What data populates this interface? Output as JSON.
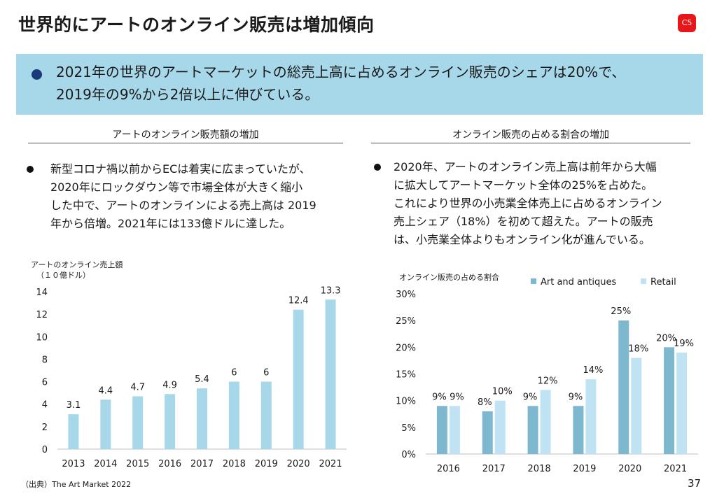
{
  "title": "世界的にアートのオンライン販売は増加傾向",
  "badge": "C5",
  "banner": {
    "line1": "2021年の世界のアートマーケットの総売上高に占めるオンライン販売のシェアは20%で、",
    "line2": "2019年の9%から2倍以上に伸びている。"
  },
  "left": {
    "heading": "アートのオンライン販売額の増加",
    "bullet": [
      "新型コロナ禍以前からECは着実に広まっていたが、",
      "2020年にロックダウン等で市場全体が大きく縮小",
      "した中で、アートのオンラインによる売上高は 2019",
      "年から倍増。2021年には133億ドルに達した。"
    ]
  },
  "right": {
    "heading": "オンライン販売の占める割合の増加",
    "bullet": [
      "2020年、アートのオンライン売上高は前年から大幅",
      "に拡大してアートマーケット全体の25%を占めた。",
      "これにより世界の小売業全体売上に占めるオンライン",
      "売上シェア（18%）を初めて超えた。アートの販売",
      "は、小売業全体よりもオンライン化が進んでいる。"
    ]
  },
  "source": "（出典）The Art Market 2022",
  "page_number": "37",
  "chart_data": [
    {
      "type": "bar",
      "ylabel": "アートのオンライン売上額",
      "ylabel2": "（１０億ドル）",
      "categories": [
        "2013",
        "2014",
        "2015",
        "2016",
        "2017",
        "2018",
        "2019",
        "2020",
        "2021"
      ],
      "values": [
        3.1,
        4.4,
        4.7,
        4.9,
        5.4,
        6,
        6,
        12.4,
        13.3
      ],
      "value_labels": [
        "3.1",
        "4.4",
        "4.7",
        "4.9",
        "5.4",
        "6",
        "6",
        "12.4",
        "13.3"
      ],
      "ylim": [
        0,
        14
      ],
      "yticks": [
        "0",
        "2",
        "4",
        "6",
        "8",
        "10",
        "12",
        "14"
      ],
      "grid": false,
      "color": "#a7d8ea"
    },
    {
      "type": "bar",
      "ylabel": "オンライン販売の占める割合",
      "categories": [
        "2016",
        "2017",
        "2018",
        "2019",
        "2020",
        "2021"
      ],
      "series": [
        {
          "name": "Art and antiques",
          "values": [
            9,
            8,
            9,
            9,
            25,
            20
          ],
          "labels": [
            "9%",
            "8%",
            "9%",
            "9%",
            "25%",
            "20%"
          ],
          "color": "#7db8cf"
        },
        {
          "name": "Retail",
          "values": [
            9,
            10,
            12,
            14,
            18,
            19
          ],
          "labels": [
            "9%",
            "10%",
            "12%",
            "14%",
            "18%",
            "19%"
          ],
          "color": "#bfe3f3"
        }
      ],
      "ylim": [
        0,
        30
      ],
      "yticks": [
        "0%",
        "5%",
        "10%",
        "15%",
        "20%",
        "25%",
        "30%"
      ],
      "legend": "top",
      "grid": false
    }
  ]
}
